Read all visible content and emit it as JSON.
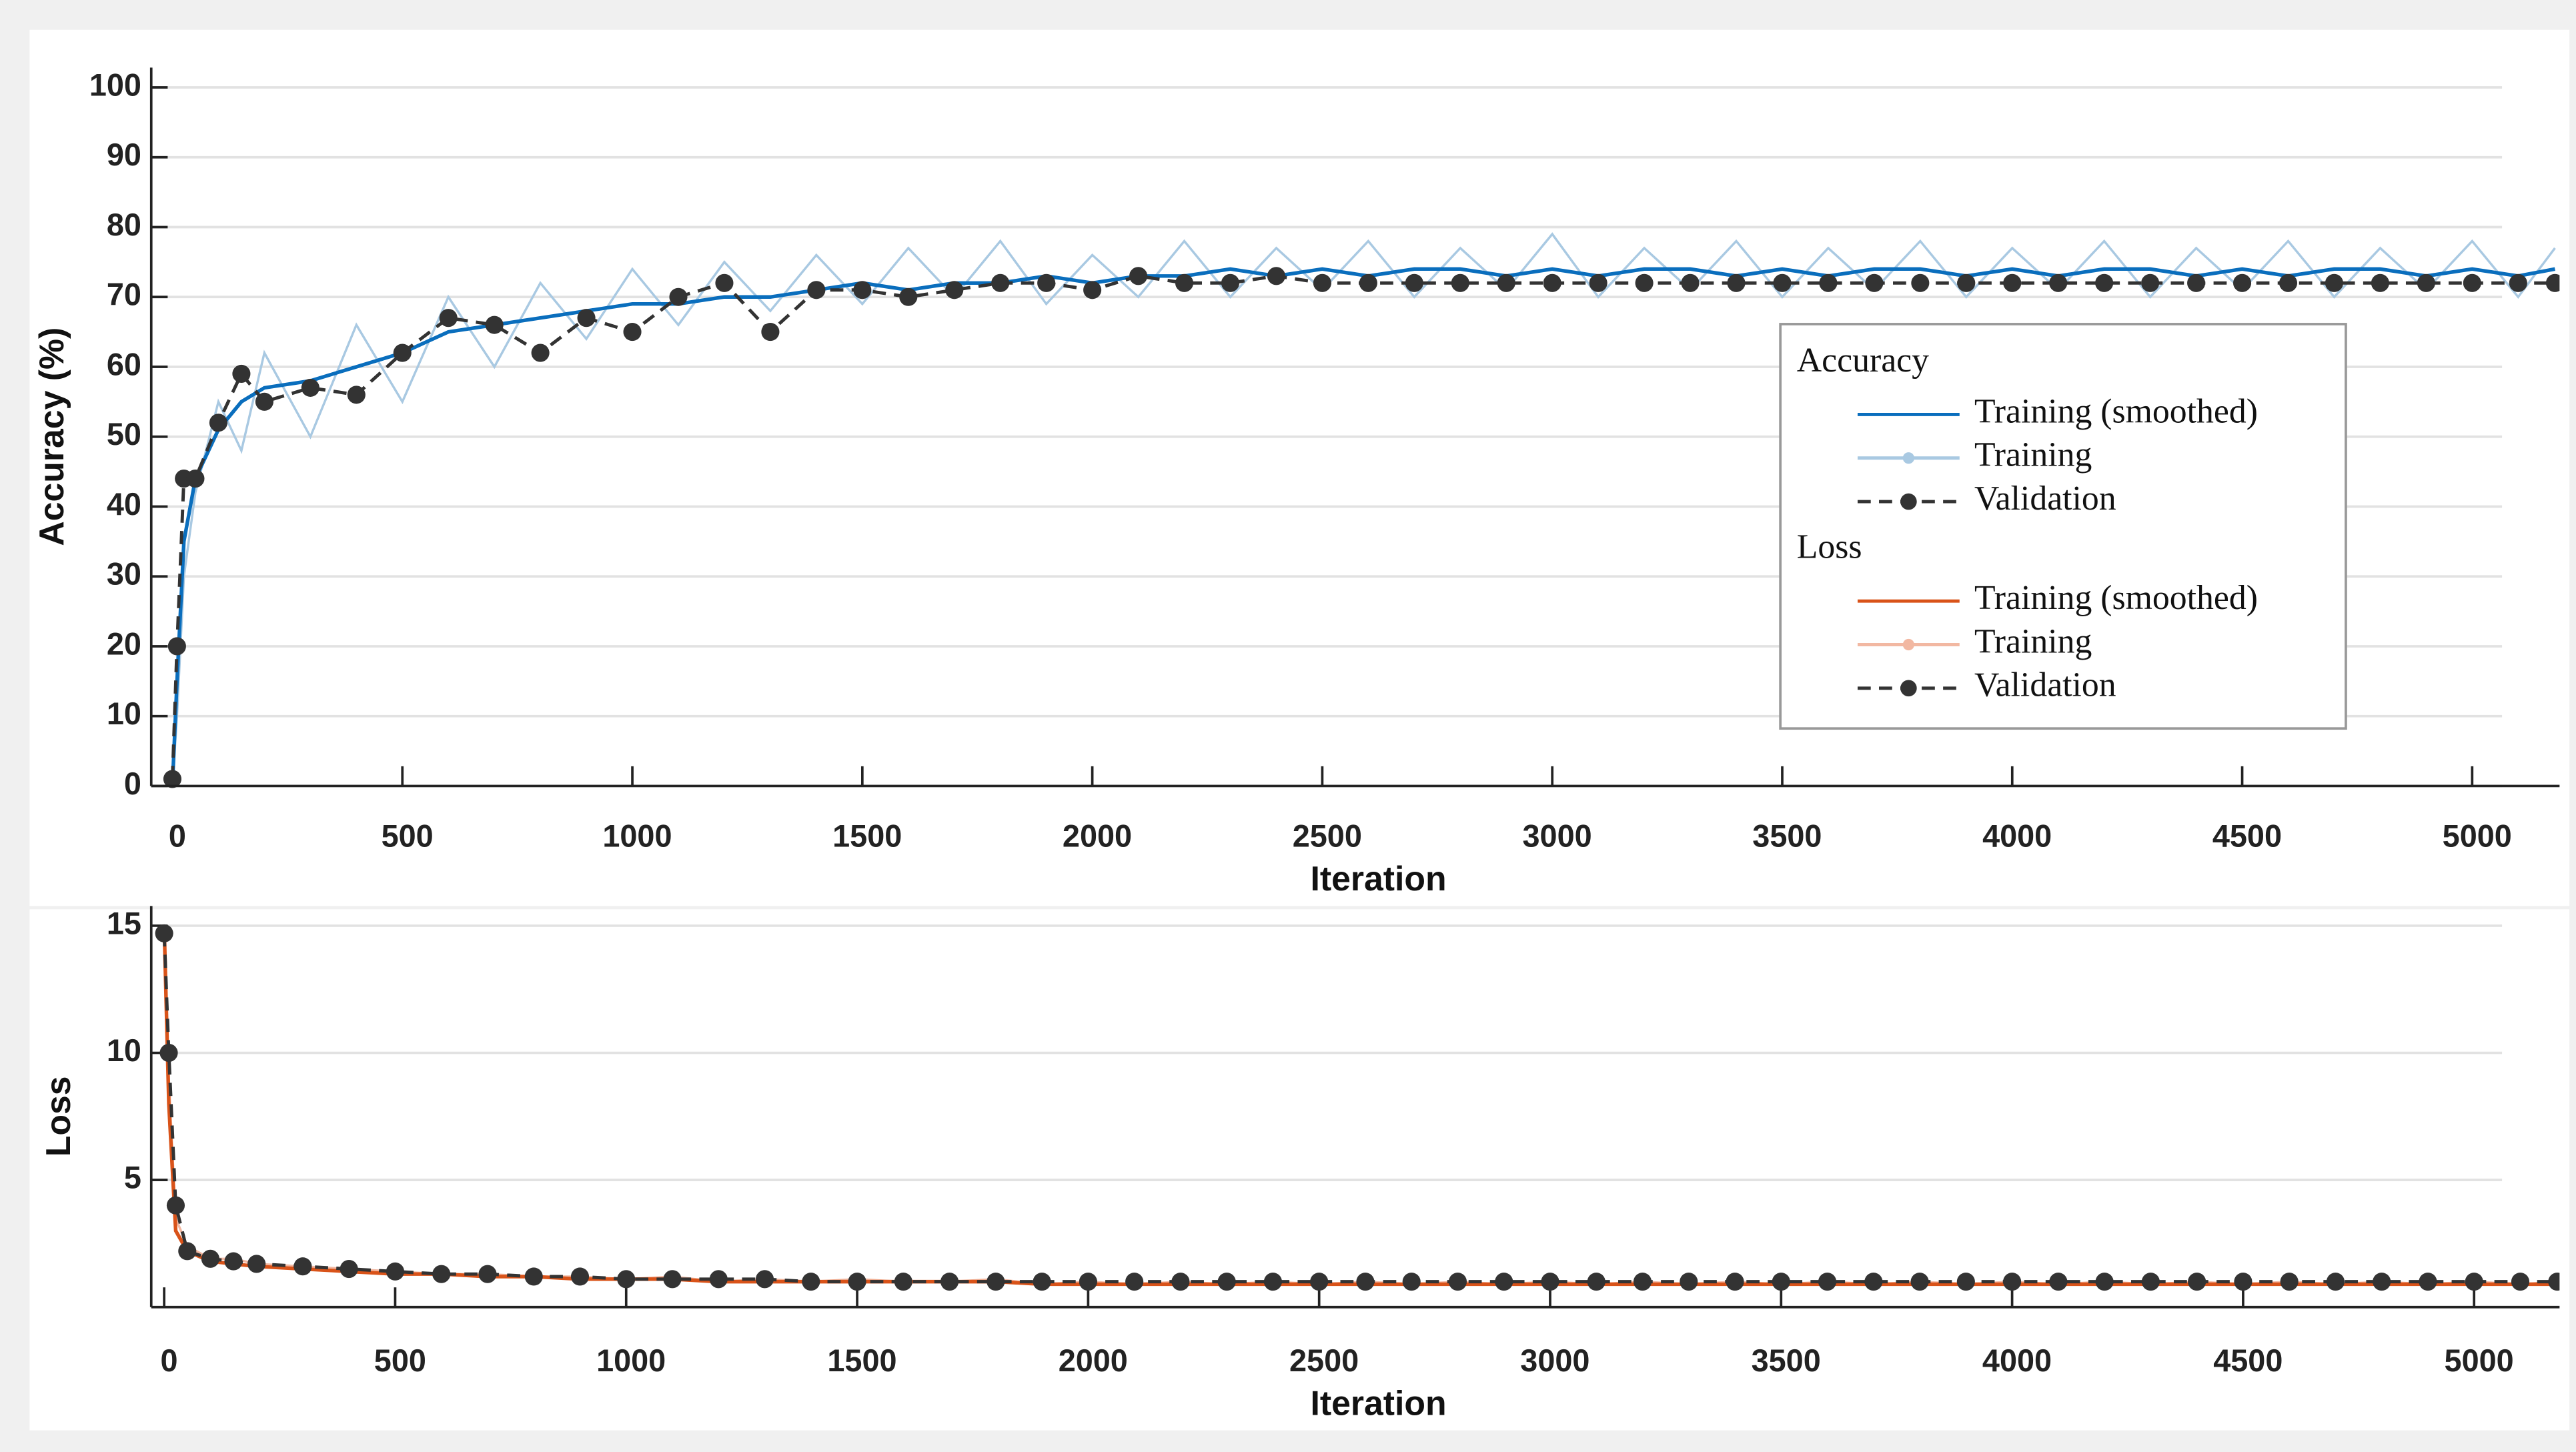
{
  "chart_data": [
    {
      "type": "line",
      "xlabel": "Iteration",
      "ylabel": "Accuracy (%)",
      "legend_title": "Accuracy",
      "xlim": [
        -46,
        5190
      ],
      "ylim": [
        0,
        100
      ],
      "xticks": [
        0,
        500,
        1000,
        1500,
        2000,
        2500,
        3000,
        3500,
        4000,
        4500,
        5000
      ],
      "yticks": [
        0,
        10,
        20,
        30,
        40,
        50,
        60,
        70,
        80,
        90,
        100
      ],
      "grid": true,
      "legend": "right",
      "x": [
        0,
        10,
        25,
        50,
        100,
        150,
        200,
        300,
        400,
        500,
        600,
        700,
        800,
        900,
        1000,
        1100,
        1200,
        1300,
        1400,
        1500,
        1600,
        1700,
        1800,
        1900,
        2000,
        2100,
        2200,
        2300,
        2400,
        2500,
        2600,
        2700,
        2800,
        2900,
        3000,
        3100,
        3200,
        3300,
        3400,
        3500,
        3600,
        3700,
        3800,
        3900,
        4000,
        4100,
        4200,
        4300,
        4400,
        4500,
        4600,
        4700,
        4800,
        4900,
        5000,
        5100,
        5180
      ],
      "series": [
        {
          "name": "Training (smoothed)",
          "color": "#0a6ebd",
          "style": "solid",
          "marker": "none",
          "values": [
            0,
            15,
            35,
            44,
            51,
            55,
            57,
            58,
            60,
            62,
            65,
            66,
            67,
            68,
            69,
            69,
            70,
            70,
            71,
            72,
            71,
            72,
            72,
            73,
            72,
            73,
            73,
            74,
            73,
            74,
            73,
            74,
            74,
            73,
            74,
            73,
            74,
            74,
            73,
            74,
            73,
            74,
            74,
            73,
            74,
            73,
            74,
            74,
            73,
            74,
            73,
            74,
            74,
            73,
            74,
            73,
            74
          ]
        },
        {
          "name": "Training",
          "color": "#a9c9e2",
          "style": "solid",
          "marker": "dot",
          "values": [
            0,
            10,
            30,
            42,
            55,
            48,
            62,
            50,
            66,
            55,
            70,
            60,
            72,
            64,
            74,
            66,
            75,
            68,
            76,
            69,
            77,
            70,
            78,
            69,
            76,
            70,
            78,
            70,
            77,
            71,
            78,
            70,
            77,
            71,
            79,
            70,
            77,
            71,
            78,
            70,
            77,
            71,
            78,
            70,
            77,
            71,
            78,
            70,
            77,
            71,
            78,
            70,
            77,
            71,
            78,
            70,
            77
          ]
        },
        {
          "name": "Validation",
          "color": "#333333",
          "style": "dashed",
          "marker": "circle",
          "values": [
            1,
            20,
            44,
            44,
            52,
            59,
            55,
            57,
            56,
            62,
            67,
            66,
            62,
            67,
            65,
            70,
            72,
            65,
            71,
            71,
            70,
            71,
            72,
            72,
            71,
            73,
            72,
            72,
            73,
            72,
            72,
            72,
            72,
            72,
            72,
            72,
            72,
            72,
            72,
            72,
            72,
            72,
            72,
            72,
            72,
            72,
            72,
            72,
            72,
            72,
            72,
            72,
            72,
            72,
            72,
            72,
            72
          ]
        }
      ]
    },
    {
      "type": "line",
      "xlabel": "Iteration",
      "ylabel": "Loss",
      "legend_title": "Loss",
      "xlim": [
        -28,
        5185
      ],
      "ylim": [
        0,
        15
      ],
      "xticks": [
        0,
        500,
        1000,
        1500,
        2000,
        2500,
        3000,
        3500,
        4000,
        4500,
        5000
      ],
      "yticks": [
        5,
        10,
        15
      ],
      "grid": true,
      "x": [
        0,
        10,
        25,
        50,
        100,
        150,
        200,
        300,
        400,
        500,
        600,
        700,
        800,
        900,
        1000,
        1100,
        1200,
        1300,
        1400,
        1500,
        1600,
        1700,
        1800,
        1900,
        2000,
        2100,
        2200,
        2300,
        2400,
        2500,
        2600,
        2700,
        2800,
        2900,
        3000,
        3100,
        3200,
        3300,
        3400,
        3500,
        3600,
        3700,
        3800,
        3900,
        4000,
        4100,
        4200,
        4300,
        4400,
        4500,
        4600,
        4700,
        4800,
        4900,
        5000,
        5100,
        5180
      ],
      "series": [
        {
          "name": "Training (smoothed)",
          "color": "#d95319",
          "style": "solid",
          "marker": "none",
          "values": [
            15,
            8,
            3,
            2.2,
            1.8,
            1.7,
            1.6,
            1.5,
            1.4,
            1.3,
            1.3,
            1.2,
            1.2,
            1.1,
            1.1,
            1.1,
            1.0,
            1.0,
            1.0,
            1.0,
            1.0,
            1.0,
            1.0,
            0.9,
            0.9,
            0.9,
            0.9,
            0.9,
            0.9,
            0.9,
            0.9,
            0.9,
            0.9,
            0.9,
            0.9,
            0.9,
            0.9,
            0.9,
            0.9,
            0.9,
            0.9,
            0.9,
            0.9,
            0.9,
            0.9,
            0.9,
            0.9,
            0.9,
            0.9,
            0.9,
            0.9,
            0.9,
            0.9,
            0.9,
            0.9,
            0.9,
            0.9
          ]
        },
        {
          "name": "Training",
          "color": "#f2b8a2",
          "style": "solid",
          "marker": "dot",
          "values": [
            14,
            9,
            3.5,
            2.4,
            1.9,
            1.9,
            1.7,
            1.6,
            1.5,
            1.4,
            1.3,
            1.3,
            1.2,
            1.2,
            1.1,
            1.2,
            1.0,
            1.1,
            1.0,
            1.1,
            1.0,
            1.0,
            1.1,
            0.9,
            1.0,
            0.9,
            1.0,
            0.9,
            1.0,
            0.9,
            1.0,
            0.9,
            1.0,
            0.9,
            1.0,
            0.9,
            1.0,
            0.9,
            1.0,
            0.9,
            1.0,
            0.9,
            1.0,
            0.9,
            1.0,
            0.9,
            1.0,
            0.9,
            1.0,
            0.9,
            1.0,
            0.9,
            1.0,
            0.9,
            1.0,
            0.9,
            1.0
          ]
        },
        {
          "name": "Validation",
          "color": "#333333",
          "style": "dashed",
          "marker": "circle",
          "values": [
            14.7,
            10,
            4,
            2.2,
            1.9,
            1.8,
            1.7,
            1.6,
            1.5,
            1.4,
            1.3,
            1.3,
            1.2,
            1.2,
            1.1,
            1.1,
            1.1,
            1.1,
            1.0,
            1.0,
            1.0,
            1.0,
            1.0,
            1.0,
            1.0,
            1.0,
            1.0,
            1.0,
            1.0,
            1.0,
            1.0,
            1.0,
            1.0,
            1.0,
            1.0,
            1.0,
            1.0,
            1.0,
            1.0,
            1.0,
            1.0,
            1.0,
            1.0,
            1.0,
            1.0,
            1.0,
            1.0,
            1.0,
            1.0,
            1.0,
            1.0,
            1.0,
            1.0,
            1.0,
            1.0,
            1.0,
            1.0
          ]
        }
      ]
    }
  ]
}
